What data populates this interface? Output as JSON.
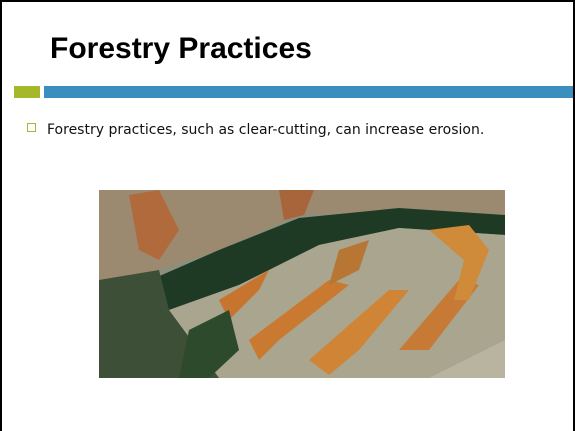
{
  "slide": {
    "title": "Forestry Practices",
    "bullets": [
      "Forestry practices, such as clear-cutting, can increase erosion."
    ]
  }
}
